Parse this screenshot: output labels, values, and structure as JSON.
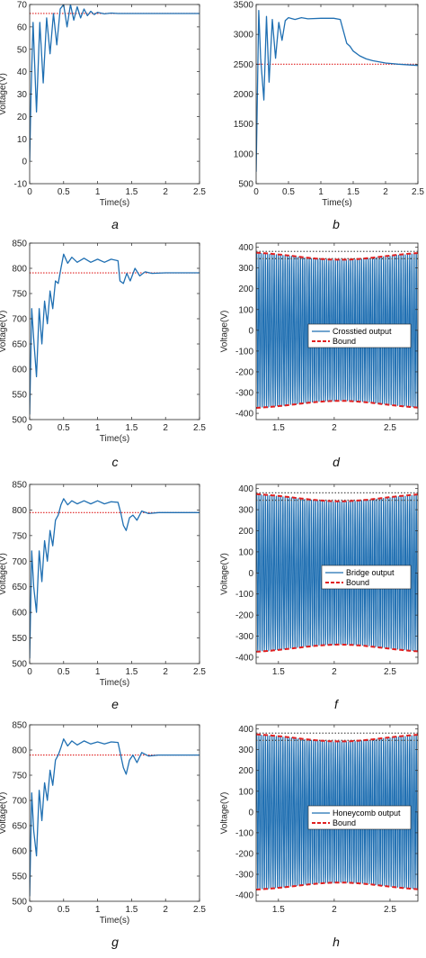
{
  "chart_data": [
    {
      "id": "a",
      "panel_label": "a",
      "type": "line",
      "xlabel": "Time(s)",
      "ylabel": "Voltage(V)",
      "xlim": [
        0,
        2.5
      ],
      "ylim": [
        -10,
        70
      ],
      "xticks": [
        0,
        0.5,
        1,
        1.5,
        2,
        2.5
      ],
      "xtick_labels": [
        "0",
        "0.5",
        "1",
        "1.5",
        "2",
        "2.5"
      ],
      "yticks": [
        -10,
        0,
        10,
        20,
        30,
        40,
        50,
        60,
        70
      ],
      "ytick_labels": [
        "-10",
        "0",
        "10",
        "20",
        "30",
        "40",
        "50",
        "60",
        "70"
      ],
      "reference": {
        "y": 66,
        "color": "#e02020",
        "style": "dotted"
      },
      "series": [
        {
          "color": "#1f6fb2",
          "x": [
            0,
            0.02,
            0.05,
            0.1,
            0.15,
            0.2,
            0.25,
            0.3,
            0.35,
            0.4,
            0.45,
            0.5,
            0.55,
            0.6,
            0.65,
            0.7,
            0.75,
            0.8,
            0.85,
            0.9,
            0.95,
            1.0,
            1.1,
            1.2,
            1.3,
            1.5,
            2.0,
            2.5
          ],
          "y": [
            0,
            30,
            62,
            22,
            62,
            35,
            64,
            48,
            66,
            52,
            68,
            70,
            60,
            70,
            63,
            69,
            64,
            68,
            65,
            67,
            65.5,
            66.5,
            65.8,
            66.2,
            66,
            66,
            66,
            66
          ]
        }
      ]
    },
    {
      "id": "b",
      "panel_label": "b",
      "type": "line",
      "xlabel": "Time(s)",
      "ylabel": "",
      "xlim": [
        0,
        2.5
      ],
      "ylim": [
        500,
        3500
      ],
      "xticks": [
        0,
        0.5,
        1,
        1.5,
        2,
        2.5
      ],
      "xtick_labels": [
        "0",
        "0.5",
        "1",
        "1.5",
        "2",
        "2.5"
      ],
      "yticks": [
        500,
        1000,
        1500,
        2000,
        2500,
        3000,
        3500
      ],
      "ytick_labels": [
        "500",
        "1000",
        "1500",
        "2000",
        "2500",
        "3000",
        "3500"
      ],
      "reference": {
        "y": 2500,
        "color": "#e02020",
        "style": "dotted"
      },
      "series": [
        {
          "color": "#1f6fb2",
          "x": [
            0,
            0.04,
            0.07,
            0.12,
            0.16,
            0.2,
            0.25,
            0.3,
            0.35,
            0.4,
            0.45,
            0.5,
            0.6,
            0.7,
            0.8,
            1.0,
            1.2,
            1.3,
            1.35,
            1.4,
            1.45,
            1.5,
            1.6,
            1.7,
            1.8,
            2.0,
            2.2,
            2.5
          ],
          "y": [
            700,
            3400,
            2600,
            1900,
            3300,
            2200,
            3250,
            2600,
            3200,
            2900,
            3230,
            3280,
            3250,
            3280,
            3260,
            3270,
            3270,
            3250,
            3050,
            2850,
            2800,
            2720,
            2640,
            2590,
            2560,
            2520,
            2500,
            2480
          ]
        }
      ]
    },
    {
      "id": "c",
      "panel_label": "c",
      "type": "line",
      "xlabel": "Time(s)",
      "ylabel": "Voltage(V)",
      "xlim": [
        0,
        2.5
      ],
      "ylim": [
        500,
        850
      ],
      "xticks": [
        0,
        0.5,
        1,
        1.5,
        2,
        2.5
      ],
      "xtick_labels": [
        "0",
        "0.5",
        "1",
        "1.5",
        "2",
        "2.5"
      ],
      "yticks": [
        500,
        550,
        600,
        650,
        700,
        750,
        800,
        850
      ],
      "ytick_labels": [
        "500",
        "550",
        "600",
        "650",
        "700",
        "750",
        "800",
        "850"
      ],
      "reference": {
        "y": 791,
        "color": "#e02020",
        "style": "dotted"
      },
      "series": [
        {
          "color": "#1f6fb2",
          "x": [
            0,
            0.03,
            0.06,
            0.1,
            0.14,
            0.18,
            0.22,
            0.26,
            0.3,
            0.34,
            0.38,
            0.42,
            0.46,
            0.5,
            0.56,
            0.62,
            0.7,
            0.8,
            0.9,
            1.0,
            1.1,
            1.2,
            1.3,
            1.33,
            1.38,
            1.43,
            1.48,
            1.55,
            1.62,
            1.7,
            1.8,
            2.0,
            2.5
          ],
          "y": [
            510,
            720,
            660,
            585,
            720,
            650,
            735,
            690,
            755,
            720,
            775,
            770,
            800,
            828,
            810,
            822,
            812,
            820,
            812,
            818,
            812,
            818,
            815,
            775,
            770,
            790,
            775,
            800,
            785,
            793,
            790,
            791,
            791
          ]
        }
      ]
    },
    {
      "id": "d",
      "panel_label": "d",
      "type": "line",
      "xlabel": "",
      "ylabel": "Voltage(V)",
      "xlim": [
        1.3,
        2.75
      ],
      "ylim": [
        -430,
        420
      ],
      "xticks": [
        1.5,
        2,
        2.5
      ],
      "xtick_labels": [
        "1.5",
        "2",
        "2.5"
      ],
      "yticks": [
        -400,
        -300,
        -200,
        -100,
        0,
        100,
        200,
        300,
        400
      ],
      "ytick_labels": [
        "-400",
        "-300",
        "-200",
        "-100",
        "0",
        "100",
        "200",
        "300",
        "400"
      ],
      "oscillation": {
        "cycles": 74,
        "amplitude_min": 340,
        "amplitude_max": 380,
        "dip_at": 2.05
      },
      "reference_lines": [
        {
          "y": 380,
          "color": "#555555",
          "style": "dotted"
        },
        {
          "y": 345,
          "color": "#555555",
          "style": "dotted"
        }
      ],
      "legend": {
        "position": "middle-right",
        "entries": [
          {
            "label": "Crosstied output",
            "color": "#1f6fb2",
            "style": "solid"
          },
          {
            "label": "Bound",
            "color": "#e02020",
            "style": "dashed"
          }
        ]
      }
    },
    {
      "id": "e",
      "panel_label": "e",
      "type": "line",
      "xlabel": "Time(s)",
      "ylabel": "Voltage(V)",
      "xlim": [
        0,
        2.5
      ],
      "ylim": [
        500,
        850
      ],
      "xticks": [
        0,
        0.5,
        1,
        1.5,
        2,
        2.5
      ],
      "xtick_labels": [
        "0",
        "0.5",
        "1",
        "1.5",
        "2",
        "2.5"
      ],
      "yticks": [
        500,
        550,
        600,
        650,
        700,
        750,
        800,
        850
      ],
      "ytick_labels": [
        "500",
        "550",
        "600",
        "650",
        "700",
        "750",
        "800",
        "850"
      ],
      "reference": {
        "y": 795,
        "color": "#e02020",
        "style": "dotted"
      },
      "series": [
        {
          "color": "#1f6fb2",
          "x": [
            0,
            0.03,
            0.06,
            0.1,
            0.14,
            0.18,
            0.22,
            0.26,
            0.3,
            0.34,
            0.38,
            0.42,
            0.46,
            0.5,
            0.56,
            0.62,
            0.7,
            0.8,
            0.9,
            1.0,
            1.1,
            1.2,
            1.3,
            1.34,
            1.38,
            1.42,
            1.47,
            1.52,
            1.58,
            1.65,
            1.75,
            1.9,
            2.5
          ],
          "y": [
            510,
            720,
            650,
            600,
            720,
            660,
            740,
            700,
            760,
            730,
            780,
            790,
            810,
            822,
            810,
            818,
            812,
            818,
            812,
            818,
            812,
            816,
            815,
            795,
            770,
            760,
            785,
            790,
            780,
            798,
            793,
            795,
            795
          ]
        }
      ]
    },
    {
      "id": "f",
      "panel_label": "f",
      "type": "line",
      "xlabel": "",
      "ylabel": "Voltage(V)",
      "xlim": [
        1.3,
        2.75
      ],
      "ylim": [
        -430,
        420
      ],
      "xticks": [
        1.5,
        2,
        2.5
      ],
      "xtick_labels": [
        "1.5",
        "2",
        "2.5"
      ],
      "yticks": [
        -400,
        -300,
        -200,
        -100,
        0,
        100,
        200,
        300,
        400
      ],
      "ytick_labels": [
        "-400",
        "-300",
        "-200",
        "-100",
        "0",
        "100",
        "200",
        "300",
        "400"
      ],
      "oscillation": {
        "cycles": 74,
        "amplitude_min": 340,
        "amplitude_max": 380,
        "dip_at": 2.05
      },
      "reference_lines": [
        {
          "y": 380,
          "color": "#555555",
          "style": "dotted"
        },
        {
          "y": 345,
          "color": "#555555",
          "style": "dotted"
        }
      ],
      "legend": {
        "position": "middle-right",
        "entries": [
          {
            "label": "Bridge output",
            "color": "#1f6fb2",
            "style": "solid"
          },
          {
            "label": "Bound",
            "color": "#e02020",
            "style": "dashed"
          }
        ]
      }
    },
    {
      "id": "g",
      "panel_label": "g",
      "type": "line",
      "xlabel": "Time(s)",
      "ylabel": "Voltage(V)",
      "xlim": [
        0,
        2.5
      ],
      "ylim": [
        500,
        850
      ],
      "xticks": [
        0,
        0.5,
        1,
        1.5,
        2,
        2.5
      ],
      "xtick_labels": [
        "0",
        "0.5",
        "1",
        "1.5",
        "2",
        "2.5"
      ],
      "yticks": [
        500,
        550,
        600,
        650,
        700,
        750,
        800,
        850
      ],
      "ytick_labels": [
        "500",
        "550",
        "600",
        "650",
        "700",
        "750",
        "800",
        "850"
      ],
      "reference": {
        "y": 790,
        "color": "#e02020",
        "style": "dotted"
      },
      "series": [
        {
          "color": "#1f6fb2",
          "x": [
            0,
            0.03,
            0.06,
            0.1,
            0.14,
            0.18,
            0.22,
            0.26,
            0.3,
            0.34,
            0.38,
            0.42,
            0.46,
            0.5,
            0.56,
            0.62,
            0.7,
            0.8,
            0.9,
            1.0,
            1.1,
            1.2,
            1.3,
            1.34,
            1.38,
            1.42,
            1.47,
            1.52,
            1.58,
            1.65,
            1.75,
            1.9,
            2.5
          ],
          "y": [
            510,
            715,
            640,
            590,
            720,
            660,
            735,
            700,
            760,
            730,
            780,
            790,
            805,
            822,
            808,
            818,
            810,
            818,
            812,
            816,
            812,
            816,
            815,
            790,
            765,
            752,
            780,
            790,
            775,
            795,
            788,
            790,
            790
          ]
        }
      ]
    },
    {
      "id": "h",
      "panel_label": "h",
      "type": "line",
      "xlabel": "",
      "ylabel": "Voltage(V)",
      "xlim": [
        1.3,
        2.75
      ],
      "ylim": [
        -430,
        420
      ],
      "xticks": [
        1.5,
        2,
        2.5
      ],
      "xtick_labels": [
        "1.5",
        "2",
        "2.5"
      ],
      "yticks": [
        -400,
        -300,
        -200,
        -100,
        0,
        100,
        200,
        300,
        400
      ],
      "ytick_labels": [
        "-400",
        "-300",
        "-200",
        "-100",
        "0",
        "100",
        "200",
        "300",
        "400"
      ],
      "oscillation": {
        "cycles": 74,
        "amplitude_min": 340,
        "amplitude_max": 380,
        "dip_at": 2.05
      },
      "reference_lines": [
        {
          "y": 380,
          "color": "#555555",
          "style": "dotted"
        },
        {
          "y": 345,
          "color": "#555555",
          "style": "dotted"
        }
      ],
      "legend": {
        "position": "middle-right",
        "entries": [
          {
            "label": "Honeycomb output",
            "color": "#1f6fb2",
            "style": "solid"
          },
          {
            "label": "Bound",
            "color": "#e02020",
            "style": "dashed"
          }
        ]
      }
    }
  ]
}
